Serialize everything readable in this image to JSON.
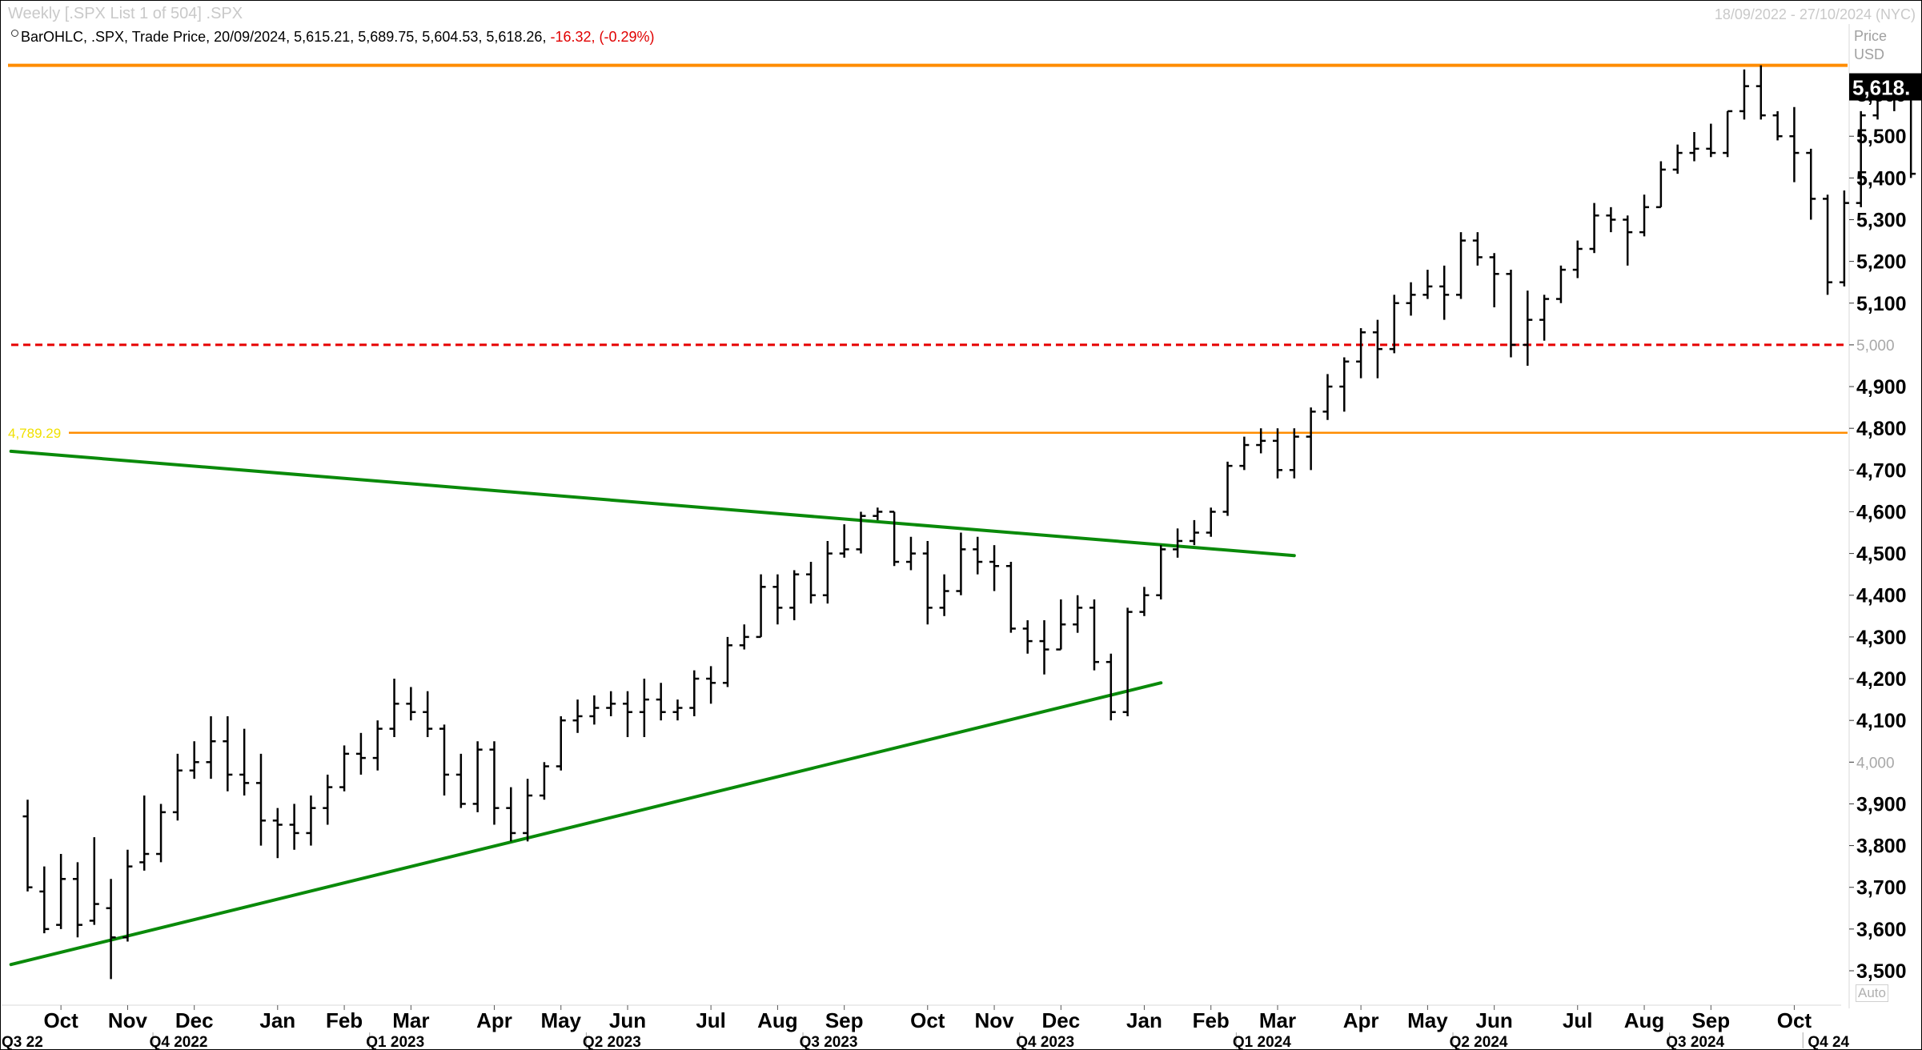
{
  "header": {
    "title": "Weekly [.SPX List 1 of 504] .SPX",
    "date_range": "18/09/2022 - 27/10/2024 (NYC)",
    "legend_prefix": "BarOHLC, .SPX, Trade Price, 20/09/2024, 5,615.21, 5,689.75, 5,604.53, 5,618.26,",
    "legend_change": "-16.32, (-0.29%)",
    "price_label": "Price",
    "currency_label": "USD",
    "auto_label": "Auto"
  },
  "colors": {
    "bars": "#000000",
    "resistance": "#ff8c00",
    "support_dashed": "#e60000",
    "trendlines": "#0a8a0a",
    "level_label": "#f0e000"
  },
  "chart_data": {
    "type": "ohlc",
    "ylim": [
      3440,
      5700
    ],
    "yticks": [
      {
        "v": 3500,
        "label": "3,500"
      },
      {
        "v": 3600,
        "label": "3,600"
      },
      {
        "v": 3700,
        "label": "3,700"
      },
      {
        "v": 3800,
        "label": "3,800"
      },
      {
        "v": 3900,
        "label": "3,900"
      },
      {
        "v": 4000,
        "label": "4,000",
        "faded": true
      },
      {
        "v": 4100,
        "label": "4,100"
      },
      {
        "v": 4200,
        "label": "4,200"
      },
      {
        "v": 4300,
        "label": "4,300"
      },
      {
        "v": 4400,
        "label": "4,400"
      },
      {
        "v": 4500,
        "label": "4,500"
      },
      {
        "v": 4600,
        "label": "4,600"
      },
      {
        "v": 4700,
        "label": "4,700"
      },
      {
        "v": 4800,
        "label": "4,800"
      },
      {
        "v": 4900,
        "label": "4,900"
      },
      {
        "v": 5000,
        "label": "5,000",
        "faded": true
      },
      {
        "v": 5100,
        "label": "5,100"
      },
      {
        "v": 5200,
        "label": "5,200"
      },
      {
        "v": 5300,
        "label": "5,300"
      },
      {
        "v": 5400,
        "label": "5,400"
      },
      {
        "v": 5500,
        "label": "5,500"
      },
      {
        "v": 5600,
        "label": "5,600"
      }
    ],
    "last_price_label": "5,618.",
    "last_price": 5618.26,
    "months": [
      {
        "label": "Oct",
        "w": 2
      },
      {
        "label": "Nov",
        "w": 6
      },
      {
        "label": "Dec",
        "w": 10
      },
      {
        "label": "Jan",
        "w": 15
      },
      {
        "label": "Feb",
        "w": 19
      },
      {
        "label": "Mar",
        "w": 23
      },
      {
        "label": "Apr",
        "w": 28
      },
      {
        "label": "May",
        "w": 32
      },
      {
        "label": "Jun",
        "w": 36
      },
      {
        "label": "Jul",
        "w": 41
      },
      {
        "label": "Aug",
        "w": 45
      },
      {
        "label": "Sep",
        "w": 49
      },
      {
        "label": "Oct",
        "w": 54
      },
      {
        "label": "Nov",
        "w": 58
      },
      {
        "label": "Dec",
        "w": 62
      },
      {
        "label": "Jan",
        "w": 67
      },
      {
        "label": "Feb",
        "w": 71
      },
      {
        "label": "Mar",
        "w": 75
      },
      {
        "label": "Apr",
        "w": 80
      },
      {
        "label": "May",
        "w": 84
      },
      {
        "label": "Jun",
        "w": 88
      },
      {
        "label": "Jul",
        "w": 93
      },
      {
        "label": "Aug",
        "w": 97
      },
      {
        "label": "Sep",
        "w": 101
      },
      {
        "label": "Oct",
        "w": 106
      }
    ],
    "quarters": [
      {
        "label": "Q3 22",
        "w": 0
      },
      {
        "label": "Q4 2022",
        "w": 8
      },
      {
        "label": "Q1 2023",
        "w": 21
      },
      {
        "label": "Q2 2023",
        "w": 34
      },
      {
        "label": "Q3 2023",
        "w": 47
      },
      {
        "label": "Q4 2023",
        "w": 60
      },
      {
        "label": "Q1 2024",
        "w": 73
      },
      {
        "label": "Q2 2024",
        "w": 86
      },
      {
        "label": "Q3 2024",
        "w": 99
      },
      {
        "label": "Q4 24",
        "w": 107
      }
    ],
    "levels": [
      {
        "name": "resistance",
        "value": 5670,
        "style": "solid-thick"
      },
      {
        "name": "support",
        "value": 5000,
        "style": "dashed"
      },
      {
        "name": "breakout",
        "value": 4789.29,
        "label": "4,789.29",
        "style": "solid"
      }
    ],
    "trendlines": [
      {
        "name": "upper",
        "from": {
          "w": -1,
          "v": 4745
        },
        "to": {
          "w": 76,
          "v": 4495
        }
      },
      {
        "name": "lower",
        "from": {
          "w": -1,
          "v": 3515
        },
        "to": {
          "w": 68,
          "v": 4190
        }
      }
    ],
    "ohlc": [
      [
        3870,
        3910,
        3690,
        3700
      ],
      [
        3690,
        3750,
        3590,
        3600
      ],
      [
        3610,
        3780,
        3600,
        3720
      ],
      [
        3720,
        3760,
        3580,
        3610
      ],
      [
        3620,
        3820,
        3610,
        3660
      ],
      [
        3650,
        3720,
        3480,
        3580
      ],
      [
        3580,
        3790,
        3570,
        3750
      ],
      [
        3760,
        3920,
        3740,
        3780
      ],
      [
        3780,
        3900,
        3760,
        3880
      ],
      [
        3880,
        4020,
        3860,
        3980
      ],
      [
        3980,
        4050,
        3960,
        4000
      ],
      [
        4000,
        4110,
        3960,
        4050
      ],
      [
        4050,
        4110,
        3930,
        3970
      ],
      [
        3970,
        4080,
        3920,
        3950
      ],
      [
        3950,
        4020,
        3800,
        3860
      ],
      [
        3860,
        3890,
        3770,
        3850
      ],
      [
        3850,
        3900,
        3790,
        3830
      ],
      [
        3830,
        3920,
        3800,
        3890
      ],
      [
        3890,
        3970,
        3850,
        3940
      ],
      [
        3940,
        4040,
        3930,
        4020
      ],
      [
        4020,
        4070,
        3970,
        4010
      ],
      [
        4010,
        4100,
        3980,
        4080
      ],
      [
        4080,
        4200,
        4060,
        4140
      ],
      [
        4140,
        4180,
        4100,
        4120
      ],
      [
        4120,
        4170,
        4060,
        4080
      ],
      [
        4080,
        4090,
        3920,
        3970
      ],
      [
        3970,
        4020,
        3890,
        3900
      ],
      [
        3900,
        4050,
        3880,
        4030
      ],
      [
        4030,
        4050,
        3850,
        3890
      ],
      [
        3890,
        3940,
        3810,
        3830
      ],
      [
        3830,
        3960,
        3810,
        3920
      ],
      [
        3920,
        4000,
        3910,
        3990
      ],
      [
        3990,
        4110,
        3980,
        4100
      ],
      [
        4100,
        4150,
        4070,
        4110
      ],
      [
        4110,
        4160,
        4090,
        4130
      ],
      [
        4130,
        4170,
        4110,
        4140
      ],
      [
        4140,
        4170,
        4060,
        4120
      ],
      [
        4120,
        4200,
        4060,
        4150
      ],
      [
        4150,
        4190,
        4100,
        4120
      ],
      [
        4120,
        4150,
        4100,
        4130
      ],
      [
        4130,
        4220,
        4110,
        4200
      ],
      [
        4200,
        4230,
        4140,
        4190
      ],
      [
        4190,
        4300,
        4180,
        4280
      ],
      [
        4280,
        4330,
        4270,
        4300
      ],
      [
        4300,
        4450,
        4300,
        4420
      ],
      [
        4420,
        4450,
        4330,
        4370
      ],
      [
        4370,
        4460,
        4340,
        4450
      ],
      [
        4450,
        4480,
        4380,
        4400
      ],
      [
        4400,
        4530,
        4380,
        4500
      ],
      [
        4500,
        4570,
        4490,
        4510
      ],
      [
        4510,
        4600,
        4500,
        4590
      ],
      [
        4590,
        4610,
        4580,
        4600
      ],
      [
        4600,
        4600,
        4470,
        4480
      ],
      [
        4480,
        4540,
        4460,
        4500
      ],
      [
        4500,
        4530,
        4330,
        4370
      ],
      [
        4370,
        4450,
        4350,
        4410
      ],
      [
        4410,
        4550,
        4400,
        4510
      ],
      [
        4510,
        4540,
        4450,
        4480
      ],
      [
        4480,
        4520,
        4410,
        4470
      ],
      [
        4470,
        4480,
        4310,
        4320
      ],
      [
        4320,
        4340,
        4260,
        4290
      ],
      [
        4290,
        4340,
        4210,
        4270
      ],
      [
        4270,
        4390,
        4270,
        4330
      ],
      [
        4330,
        4400,
        4310,
        4370
      ],
      [
        4370,
        4390,
        4220,
        4240
      ],
      [
        4240,
        4260,
        4100,
        4120
      ],
      [
        4120,
        4370,
        4110,
        4360
      ],
      [
        4360,
        4420,
        4350,
        4400
      ],
      [
        4400,
        4520,
        4390,
        4510
      ],
      [
        4510,
        4560,
        4490,
        4530
      ],
      [
        4530,
        4580,
        4520,
        4550
      ],
      [
        4550,
        4610,
        4540,
        4600
      ],
      [
        4600,
        4720,
        4590,
        4710
      ],
      [
        4710,
        4780,
        4700,
        4760
      ],
      [
        4760,
        4800,
        4740,
        4770
      ],
      [
        4770,
        4800,
        4680,
        4700
      ],
      [
        4700,
        4800,
        4680,
        4780
      ],
      [
        4780,
        4850,
        4700,
        4840
      ],
      [
        4840,
        4930,
        4820,
        4900
      ],
      [
        4900,
        4970,
        4840,
        4960
      ],
      [
        4960,
        5040,
        4920,
        5030
      ],
      [
        5030,
        5060,
        4920,
        4990
      ],
      [
        4990,
        5120,
        4980,
        5100
      ],
      [
        5100,
        5150,
        5070,
        5120
      ],
      [
        5120,
        5180,
        5110,
        5140
      ],
      [
        5140,
        5190,
        5060,
        5120
      ],
      [
        5120,
        5270,
        5110,
        5250
      ],
      [
        5250,
        5270,
        5190,
        5210
      ],
      [
        5210,
        5220,
        5090,
        5170
      ],
      [
        5170,
        5180,
        4970,
        5000
      ],
      [
        5000,
        5130,
        4950,
        5060
      ],
      [
        5060,
        5120,
        5010,
        5110
      ],
      [
        5110,
        5190,
        5100,
        5180
      ],
      [
        5180,
        5250,
        5160,
        5230
      ],
      [
        5230,
        5340,
        5220,
        5310
      ],
      [
        5310,
        5330,
        5270,
        5300
      ],
      [
        5300,
        5310,
        5190,
        5270
      ],
      [
        5270,
        5360,
        5260,
        5330
      ],
      [
        5330,
        5440,
        5330,
        5420
      ],
      [
        5420,
        5480,
        5410,
        5460
      ],
      [
        5460,
        5510,
        5440,
        5470
      ],
      [
        5470,
        5530,
        5450,
        5460
      ],
      [
        5460,
        5560,
        5450,
        5560
      ],
      [
        5560,
        5660,
        5540,
        5620
      ],
      [
        5620,
        5670,
        5540,
        5550
      ],
      [
        5550,
        5560,
        5490,
        5500
      ],
      [
        5500,
        5570,
        5390,
        5460
      ],
      [
        5460,
        5470,
        5300,
        5350
      ],
      [
        5350,
        5360,
        5120,
        5150
      ],
      [
        5150,
        5370,
        5140,
        5340
      ],
      [
        5340,
        5560,
        5330,
        5550
      ],
      [
        5550,
        5640,
        5540,
        5630
      ],
      [
        5630,
        5640,
        5560,
        5620
      ],
      [
        5620,
        5620,
        5400,
        5410
      ],
      [
        5410,
        5450,
        5400,
        5420
      ],
      [
        5420,
        5630,
        5410,
        5620
      ],
      [
        5615.21,
        5689.75,
        5604.53,
        5618.26
      ]
    ]
  }
}
